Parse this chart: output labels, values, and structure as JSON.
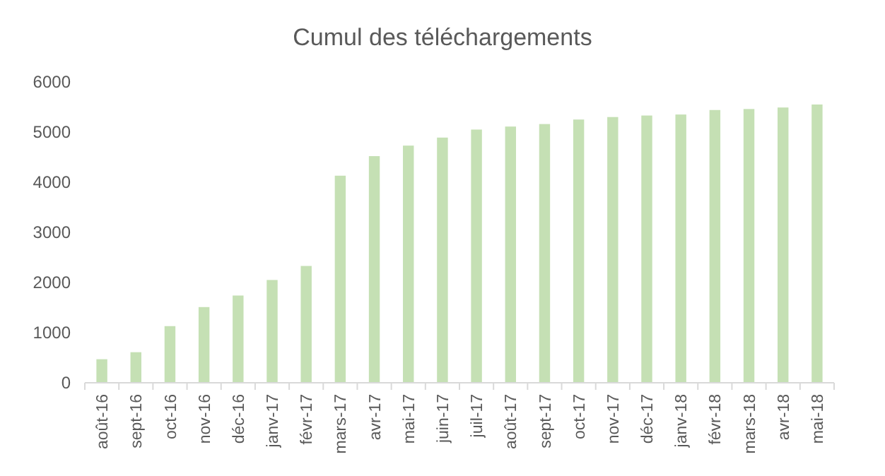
{
  "chart_data": {
    "type": "bar",
    "title": "Cumul des téléchargements",
    "categories": [
      "août-16",
      "sept-16",
      "oct-16",
      "nov-16",
      "déc-16",
      "janv-17",
      "févr-17",
      "mars-17",
      "avr-17",
      "mai-17",
      "juin-17",
      "juil-17",
      "août-17",
      "sept-17",
      "oct-17",
      "nov-17",
      "déc-17",
      "janv-18",
      "févr-18",
      "mars-18",
      "avr-18",
      "mai-18"
    ],
    "values": [
      470,
      610,
      1130,
      1510,
      1740,
      2050,
      2330,
      4130,
      4520,
      4730,
      4890,
      5050,
      5110,
      5160,
      5250,
      5300,
      5330,
      5350,
      5440,
      5460,
      5490,
      5550
    ],
    "color": "#c5e0b4",
    "ylim": [
      0,
      6000
    ],
    "yticks": [
      0,
      1000,
      2000,
      3000,
      4000,
      5000,
      6000
    ],
    "grid": false
  }
}
